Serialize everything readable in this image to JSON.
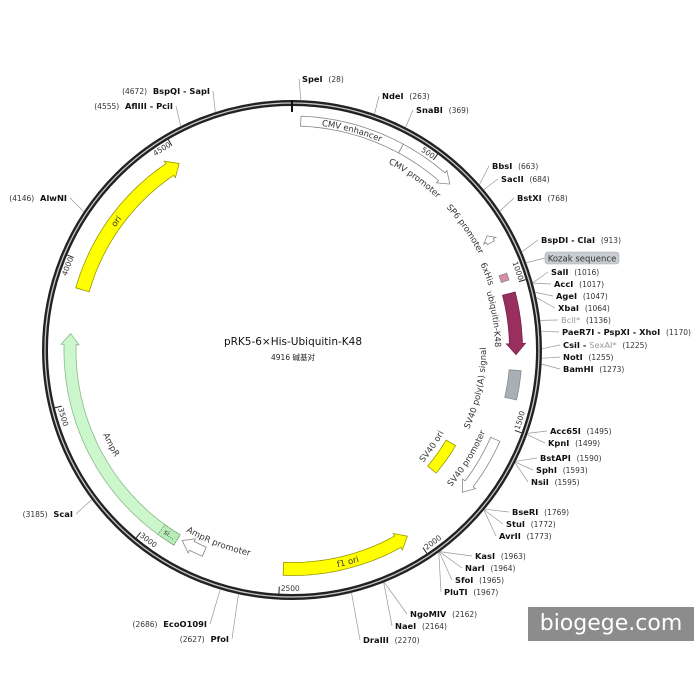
{
  "plasmid": {
    "name": "pRK5-6×His-Ubiquitin-K48",
    "length_label": "4916 碱基对",
    "length_bp": 4916
  },
  "ticks": [
    500,
    1000,
    1500,
    2000,
    2500,
    3000,
    3500,
    4000,
    4500
  ],
  "features": [
    {
      "label": "CMV enhancer",
      "start": 30,
      "end": 388,
      "direction": 0,
      "fill": "#ffffff",
      "stroke": "#888888"
    },
    {
      "label": "CMV promoter",
      "start": 388,
      "end": 595,
      "direction": 1,
      "fill": "#ffffff",
      "stroke": "#888888"
    },
    {
      "label": "SP6 promoter",
      "start": 815,
      "end": 842,
      "direction": -1,
      "fill": "#ffffff",
      "stroke": "#888888"
    },
    {
      "label": "6xHis",
      "start": 960,
      "end": 985,
      "direction": 0,
      "fill": "#d98ca3",
      "stroke": "#888888"
    },
    {
      "label": "ubiquitin-K48",
      "start": 1030,
      "end": 1245,
      "direction": 1,
      "fill": "#992f5f",
      "stroke": "#7a2048"
    },
    {
      "label": "SV40 poly(A) signal",
      "start": 1300,
      "end": 1400,
      "direction": 0,
      "fill": "#a9afb6",
      "stroke": "#888888"
    },
    {
      "label": "SV40 ori",
      "start": 1643,
      "end": 1782,
      "direction": 0,
      "fill": "#ffff00",
      "stroke": "#999900"
    },
    {
      "label": "SV40 promoter",
      "start": 1553,
      "end": 1774,
      "direction": 1,
      "fill": "#ffffff",
      "stroke": "#888888"
    },
    {
      "label": "f1 ori",
      "start": 2024,
      "end": 2489,
      "direction": -1,
      "fill": "#ffff00",
      "stroke": "#999900"
    },
    {
      "label": "AmpR promoter",
      "start": 2779,
      "end": 2867,
      "direction": 1,
      "fill": "#ffffff",
      "stroke": "#888888"
    },
    {
      "label": "AmpR",
      "start": 2884,
      "end": 3745,
      "direction": 1,
      "fill": "#ccf7cc",
      "stroke": "#88bb88"
    },
    {
      "label": "si...",
      "start": 2884,
      "end": 2950,
      "direction": 0,
      "fill": "#b8ecb8",
      "stroke": "#669966"
    },
    {
      "label": "ori",
      "start": 3906,
      "end": 4490,
      "direction": 1,
      "fill": "#ffff00",
      "stroke": "#999900"
    }
  ],
  "annotations": [
    {
      "label": "Kozak sequence",
      "position": 950
    }
  ],
  "enzymes": [
    {
      "names": [
        {
          "text": "SpeI"
        }
      ],
      "position": 28
    },
    {
      "names": [
        {
          "text": "NdeI"
        }
      ],
      "position": 263
    },
    {
      "names": [
        {
          "text": "SnaBI"
        }
      ],
      "position": 369
    },
    {
      "names": [
        {
          "text": "BbsI"
        }
      ],
      "position": 663
    },
    {
      "names": [
        {
          "text": "SacII"
        }
      ],
      "position": 684
    },
    {
      "names": [
        {
          "text": "BstXI"
        }
      ],
      "position": 768
    },
    {
      "names": [
        {
          "text": "BspDI"
        },
        {
          "text": "ClaI"
        }
      ],
      "position": 913
    },
    {
      "names": [
        {
          "text": "SalI"
        }
      ],
      "position": 1016
    },
    {
      "names": [
        {
          "text": "AccI"
        }
      ],
      "position": 1017
    },
    {
      "names": [
        {
          "text": "AgeI"
        }
      ],
      "position": 1047
    },
    {
      "names": [
        {
          "text": "XbaI"
        }
      ],
      "position": 1064
    },
    {
      "names": [
        {
          "text": "BclI*",
          "muted": true
        }
      ],
      "position": 1136
    },
    {
      "names": [
        {
          "text": "PaeR7I"
        },
        {
          "text": "PspXI"
        },
        {
          "text": "XhoI"
        }
      ],
      "position": 1170
    },
    {
      "names": [
        {
          "text": "CsiI"
        },
        {
          "text": "SexAI*",
          "muted": true
        }
      ],
      "position": 1225
    },
    {
      "names": [
        {
          "text": "NotI"
        }
      ],
      "position": 1255
    },
    {
      "names": [
        {
          "text": "BamHI"
        }
      ],
      "position": 1273
    },
    {
      "names": [
        {
          "text": "Acc65I"
        }
      ],
      "position": 1495
    },
    {
      "names": [
        {
          "text": "KpnI"
        }
      ],
      "position": 1499
    },
    {
      "names": [
        {
          "text": "BstAPI"
        }
      ],
      "position": 1590
    },
    {
      "names": [
        {
          "text": "SphI"
        }
      ],
      "position": 1593
    },
    {
      "names": [
        {
          "text": "NsiI"
        }
      ],
      "position": 1595
    },
    {
      "names": [
        {
          "text": "BseRI"
        }
      ],
      "position": 1769
    },
    {
      "names": [
        {
          "text": "StuI"
        }
      ],
      "position": 1772
    },
    {
      "names": [
        {
          "text": "AvrII"
        }
      ],
      "position": 1773
    },
    {
      "names": [
        {
          "text": "KasI"
        }
      ],
      "position": 1963
    },
    {
      "names": [
        {
          "text": "NarI"
        }
      ],
      "position": 1964
    },
    {
      "names": [
        {
          "text": "SfoI"
        }
      ],
      "position": 1965
    },
    {
      "names": [
        {
          "text": "PluTI"
        }
      ],
      "position": 1967
    },
    {
      "names": [
        {
          "text": "NgoMIV"
        }
      ],
      "position": 2162
    },
    {
      "names": [
        {
          "text": "NaeI"
        }
      ],
      "position": 2164
    },
    {
      "names": [
        {
          "text": "DraIII"
        }
      ],
      "position": 2270
    },
    {
      "names": [
        {
          "text": "PfoI"
        }
      ],
      "position": 2627
    },
    {
      "names": [
        {
          "text": "EcoO109I"
        }
      ],
      "position": 2686
    },
    {
      "names": [
        {
          "text": "ScaI"
        }
      ],
      "position": 3185
    },
    {
      "names": [
        {
          "text": "AlwNI"
        }
      ],
      "position": 4146
    },
    {
      "names": [
        {
          "text": "AflIII"
        },
        {
          "text": "PciI"
        }
      ],
      "position": 4555
    },
    {
      "names": [
        {
          "text": "BspQI"
        },
        {
          "text": "SapI"
        }
      ],
      "position": 4672
    }
  ],
  "watermark": "biogege.com"
}
